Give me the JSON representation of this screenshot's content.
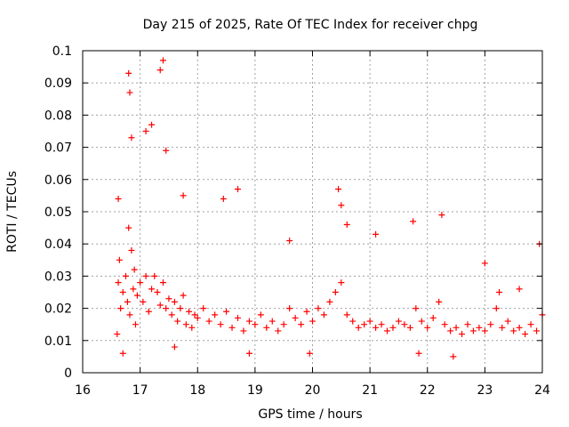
{
  "chart_data": {
    "type": "scatter",
    "title": "Day 215 of 2025, Rate Of TEC Index for receiver chpg",
    "xlabel": "GPS time / hours",
    "ylabel": "ROTI / TECUs",
    "xlim": [
      16,
      24
    ],
    "ylim": [
      0,
      0.1
    ],
    "x_ticks": [
      16,
      17,
      18,
      19,
      20,
      21,
      22,
      23,
      24
    ],
    "x_tick_labels": [
      "16",
      "17",
      "18",
      "19",
      "20",
      "21",
      "22",
      "23",
      "24"
    ],
    "y_ticks": [
      0,
      0.01,
      0.02,
      0.03,
      0.04,
      0.05,
      0.06,
      0.07,
      0.08,
      0.09,
      0.1
    ],
    "y_tick_labels": [
      "0",
      "0.01",
      "0.02",
      "0.03",
      "0.04",
      "0.05",
      "0.06",
      "0.07",
      "0.08",
      "0.09",
      "0.1"
    ],
    "grid": true,
    "marker": "+",
    "series": [
      {
        "name": "ROTI",
        "color": "#ff0000",
        "x": [
          16.6,
          16.62,
          16.64,
          16.66,
          16.7,
          16.75,
          16.78,
          16.8,
          16.82,
          16.85,
          16.88,
          16.9,
          16.92,
          16.95,
          17.0,
          17.05,
          17.1,
          17.15,
          17.2,
          17.25,
          17.3,
          17.35,
          17.4,
          17.45,
          17.5,
          17.55,
          17.6,
          17.65,
          17.7,
          17.75,
          17.8,
          17.85,
          17.9,
          17.95,
          18.0,
          18.1,
          18.2,
          18.3,
          18.4,
          18.5,
          18.6,
          18.7,
          18.8,
          18.9,
          19.0,
          19.1,
          19.2,
          19.3,
          19.4,
          19.5,
          19.6,
          19.7,
          19.8,
          19.9,
          20.0,
          20.1,
          20.2,
          20.3,
          20.4,
          20.5,
          20.6,
          20.7,
          20.8,
          20.9,
          21.0,
          21.1,
          21.2,
          21.3,
          21.4,
          21.5,
          21.6,
          21.7,
          21.8,
          21.9,
          22.0,
          22.1,
          22.2,
          22.3,
          22.4,
          22.5,
          22.6,
          22.7,
          22.8,
          22.9,
          23.0,
          23.1,
          23.2,
          23.3,
          23.4,
          23.5,
          23.6,
          23.7,
          23.8,
          23.9,
          24.0,
          16.8,
          16.82,
          17.35,
          17.4,
          16.85,
          17.1,
          17.2,
          17.45,
          16.62,
          17.75,
          18.45,
          18.7,
          19.6,
          20.45,
          20.5,
          20.6,
          21.1,
          21.75,
          22.25,
          23.0,
          23.95,
          16.7,
          17.6,
          18.9,
          19.95,
          21.85,
          22.45,
          23.25,
          23.6
        ],
        "y": [
          0.012,
          0.028,
          0.035,
          0.02,
          0.025,
          0.03,
          0.022,
          0.045,
          0.018,
          0.038,
          0.026,
          0.032,
          0.015,
          0.024,
          0.028,
          0.022,
          0.03,
          0.019,
          0.026,
          0.03,
          0.025,
          0.021,
          0.028,
          0.02,
          0.023,
          0.018,
          0.022,
          0.016,
          0.02,
          0.024,
          0.015,
          0.019,
          0.014,
          0.018,
          0.017,
          0.02,
          0.016,
          0.018,
          0.015,
          0.019,
          0.014,
          0.017,
          0.013,
          0.016,
          0.015,
          0.018,
          0.014,
          0.016,
          0.013,
          0.015,
          0.02,
          0.017,
          0.015,
          0.019,
          0.016,
          0.02,
          0.018,
          0.022,
          0.025,
          0.028,
          0.018,
          0.016,
          0.014,
          0.015,
          0.016,
          0.014,
          0.015,
          0.013,
          0.014,
          0.016,
          0.015,
          0.014,
          0.02,
          0.016,
          0.014,
          0.017,
          0.022,
          0.015,
          0.013,
          0.014,
          0.012,
          0.015,
          0.013,
          0.014,
          0.013,
          0.015,
          0.02,
          0.014,
          0.016,
          0.013,
          0.014,
          0.012,
          0.015,
          0.013,
          0.018,
          0.093,
          0.087,
          0.094,
          0.097,
          0.073,
          0.075,
          0.077,
          0.069,
          0.054,
          0.055,
          0.054,
          0.057,
          0.041,
          0.057,
          0.052,
          0.046,
          0.043,
          0.047,
          0.049,
          0.034,
          0.04,
          0.006,
          0.008,
          0.006,
          0.006,
          0.006,
          0.005,
          0.025,
          0.026
        ]
      }
    ]
  }
}
